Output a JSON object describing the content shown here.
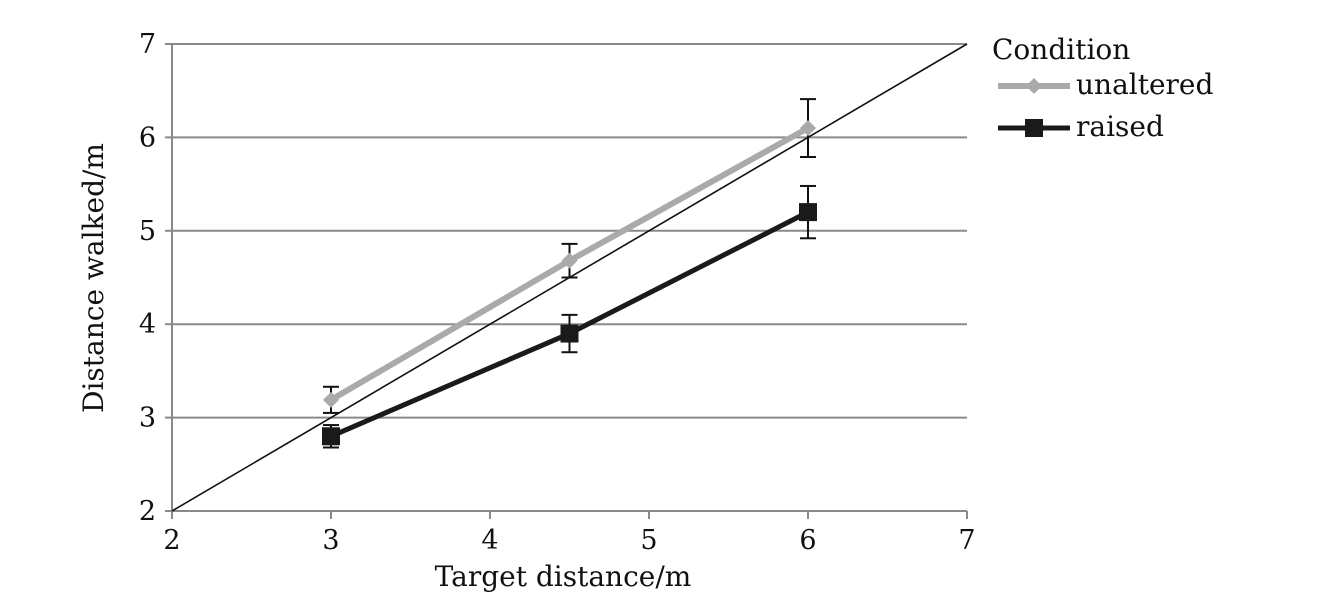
{
  "chart_data": {
    "type": "line",
    "xlabel": "Target distance/m",
    "ylabel": "Distance walked/m",
    "xlim": [
      2,
      7
    ],
    "ylim": [
      2,
      7
    ],
    "xticks": [
      "2",
      "3",
      "4",
      "5",
      "6",
      "7"
    ],
    "yticks": [
      "2",
      "3",
      "4",
      "5",
      "6",
      "7"
    ],
    "grid": "horizontal",
    "legend": {
      "title": "Condition",
      "placement": "right"
    },
    "reference_line": {
      "x": [
        2,
        7
      ],
      "y": [
        2,
        7
      ]
    },
    "series": [
      {
        "name": "unaltered",
        "marker": "diamond",
        "color": "#aaaaaa",
        "x": [
          3,
          4.5,
          6
        ],
        "y": [
          3.19,
          4.68,
          6.1
        ],
        "error": [
          0.14,
          0.18,
          0.31
        ]
      },
      {
        "name": "raised",
        "marker": "square",
        "color": "#1a1a1a",
        "x": [
          3,
          4.5,
          6
        ],
        "y": [
          2.8,
          3.9,
          5.2
        ],
        "error": [
          0.12,
          0.2,
          0.28
        ]
      }
    ]
  }
}
